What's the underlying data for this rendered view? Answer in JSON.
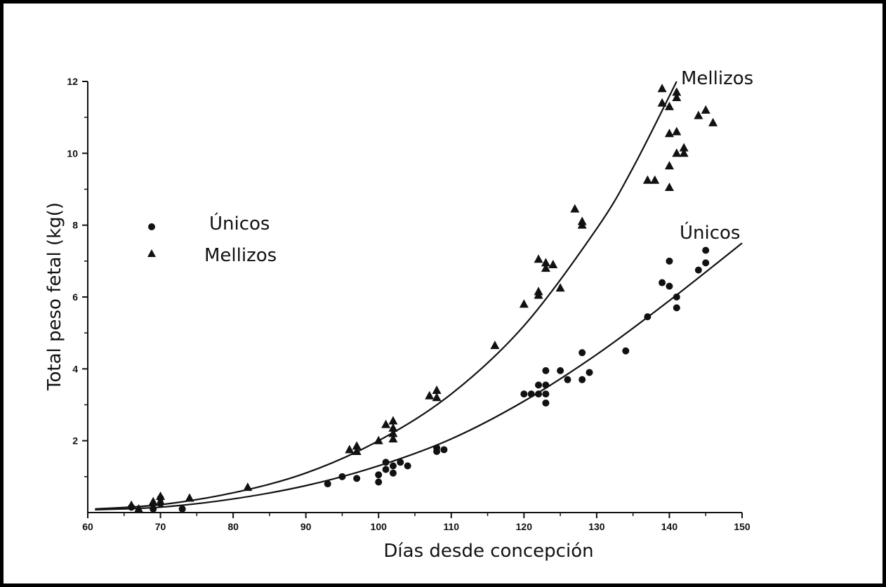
{
  "chart_data": {
    "type": "scatter",
    "title": "",
    "xlabel": "Días desde concepción",
    "ylabel": "Total peso fetal (kg()",
    "xlim": [
      60,
      150
    ],
    "ylim": [
      0,
      12
    ],
    "x_ticks": [
      "60",
      "70",
      "80",
      "90",
      "100",
      "110",
      "120",
      "130",
      "140",
      "150"
    ],
    "y_ticks": [
      "2",
      "4",
      "6",
      "8",
      "10",
      "12"
    ],
    "grid": false,
    "legend": {
      "placement": "left-middle",
      "entries": [
        {
          "marker": "circle",
          "label": "Únicos"
        },
        {
          "marker": "triangle",
          "label": "Mellizos"
        }
      ]
    },
    "curve_labels": [
      "Mellizos",
      "Únicos"
    ],
    "series": [
      {
        "name": "Únicos",
        "marker": "circle",
        "points": [
          [
            66,
            0.15
          ],
          [
            69,
            0.1
          ],
          [
            70,
            0.25
          ],
          [
            70,
            0.4
          ],
          [
            73,
            0.1
          ],
          [
            93,
            0.8
          ],
          [
            95,
            1.0
          ],
          [
            97,
            0.95
          ],
          [
            100,
            0.85
          ],
          [
            100,
            1.05
          ],
          [
            101,
            1.2
          ],
          [
            101,
            1.4
          ],
          [
            102,
            1.1
          ],
          [
            102,
            1.3
          ],
          [
            103,
            1.4
          ],
          [
            104,
            1.3
          ],
          [
            108,
            1.8
          ],
          [
            108,
            1.7
          ],
          [
            109,
            1.75
          ],
          [
            120,
            3.3
          ],
          [
            121,
            3.3
          ],
          [
            122,
            3.55
          ],
          [
            122,
            3.3
          ],
          [
            123,
            3.95
          ],
          [
            123,
            3.55
          ],
          [
            123,
            3.3
          ],
          [
            123,
            3.05
          ],
          [
            125,
            3.95
          ],
          [
            126,
            3.7
          ],
          [
            128,
            4.45
          ],
          [
            128,
            3.7
          ],
          [
            129,
            3.9
          ],
          [
            134,
            4.5
          ],
          [
            137,
            5.45
          ],
          [
            139,
            6.4
          ],
          [
            140,
            7.0
          ],
          [
            140,
            6.3
          ],
          [
            141,
            6.0
          ],
          [
            141,
            5.7
          ],
          [
            144,
            6.75
          ],
          [
            145,
            6.95
          ],
          [
            145,
            7.3
          ]
        ],
        "fit": [
          [
            61,
            0.08
          ],
          [
            70,
            0.15
          ],
          [
            80,
            0.38
          ],
          [
            90,
            0.75
          ],
          [
            100,
            1.3
          ],
          [
            110,
            2.05
          ],
          [
            120,
            3.1
          ],
          [
            130,
            4.4
          ],
          [
            140,
            5.9
          ],
          [
            150,
            7.5
          ]
        ]
      },
      {
        "name": "Mellizos",
        "marker": "triangle",
        "points": [
          [
            66,
            0.2
          ],
          [
            67,
            0.1
          ],
          [
            69,
            0.3
          ],
          [
            70,
            0.45
          ],
          [
            74,
            0.4
          ],
          [
            82,
            0.7
          ],
          [
            96,
            1.75
          ],
          [
            97,
            1.85
          ],
          [
            97,
            1.7
          ],
          [
            100,
            2.0
          ],
          [
            101,
            2.45
          ],
          [
            102,
            2.55
          ],
          [
            102,
            2.35
          ],
          [
            102,
            2.2
          ],
          [
            102,
            2.05
          ],
          [
            107,
            3.25
          ],
          [
            108,
            3.4
          ],
          [
            108,
            3.2
          ],
          [
            116,
            4.65
          ],
          [
            120,
            5.8
          ],
          [
            122,
            7.05
          ],
          [
            122,
            6.15
          ],
          [
            122,
            6.05
          ],
          [
            123,
            6.95
          ],
          [
            123,
            6.8
          ],
          [
            124,
            6.9
          ],
          [
            125,
            6.25
          ],
          [
            127,
            8.45
          ],
          [
            128,
            8.1
          ],
          [
            128,
            8.0
          ],
          [
            137,
            9.25
          ],
          [
            138,
            9.25
          ],
          [
            139,
            11.8
          ],
          [
            139,
            11.4
          ],
          [
            140,
            11.3
          ],
          [
            140,
            10.55
          ],
          [
            140,
            9.65
          ],
          [
            140,
            9.05
          ],
          [
            141,
            11.7
          ],
          [
            141,
            11.55
          ],
          [
            141,
            10.6
          ],
          [
            141,
            10.0
          ],
          [
            142,
            10.15
          ],
          [
            142,
            10.0
          ],
          [
            144,
            11.05
          ],
          [
            145,
            11.2
          ],
          [
            146,
            10.85
          ]
        ],
        "fit": [
          [
            61,
            0.1
          ],
          [
            70,
            0.22
          ],
          [
            80,
            0.55
          ],
          [
            90,
            1.1
          ],
          [
            100,
            2.0
          ],
          [
            110,
            3.3
          ],
          [
            120,
            5.2
          ],
          [
            130,
            7.9
          ],
          [
            135,
            9.6
          ],
          [
            141,
            12.0
          ]
        ]
      }
    ]
  }
}
